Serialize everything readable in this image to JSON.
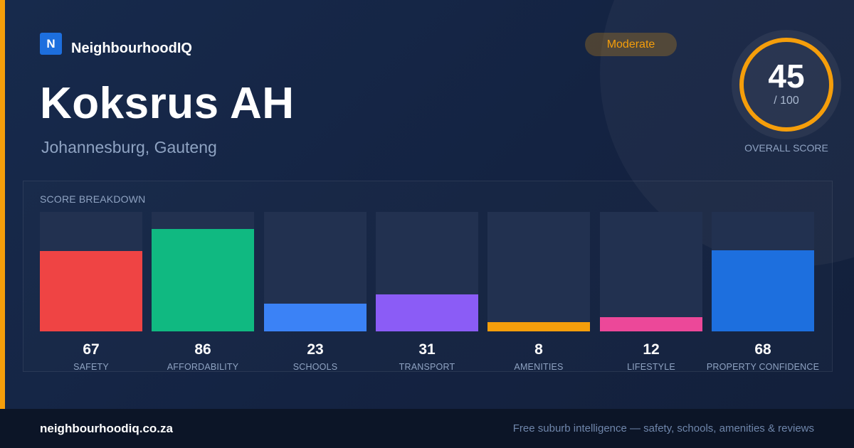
{
  "brand": {
    "logo_letter": "N",
    "name": "NeighbourhoodIQ"
  },
  "suburb": {
    "name": "Koksrus AH",
    "location": "Johannesburg, Gauteng"
  },
  "rating": {
    "label": "Moderate",
    "color": "#f59e0b"
  },
  "overall": {
    "score": "45",
    "max": "/ 100",
    "value": 45,
    "caption": "OVERALL SCORE"
  },
  "breakdown": {
    "title": "SCORE BREAKDOWN",
    "items": [
      {
        "label": "SAFETY",
        "value": 67,
        "display": "67",
        "color": "#ef4444"
      },
      {
        "label": "AFFORDABILITY",
        "value": 86,
        "display": "86",
        "color": "#10b981"
      },
      {
        "label": "SCHOOLS",
        "value": 23,
        "display": "23",
        "color": "#3b82f6"
      },
      {
        "label": "TRANSPORT",
        "value": 31,
        "display": "31",
        "color": "#8b5cf6"
      },
      {
        "label": "AMENITIES",
        "value": 8,
        "display": "8",
        "color": "#f59e0b"
      },
      {
        "label": "LIFESTYLE",
        "value": 12,
        "display": "12",
        "color": "#ec4899"
      },
      {
        "label": "PROPERTY CONFIDENCE",
        "value": 68,
        "display": "68",
        "color": "#1d6fde"
      }
    ]
  },
  "footer": {
    "url": "neighbourhoodiq.co.za",
    "tagline": "Free suburb intelligence — safety, schools, amenities & reviews"
  }
}
